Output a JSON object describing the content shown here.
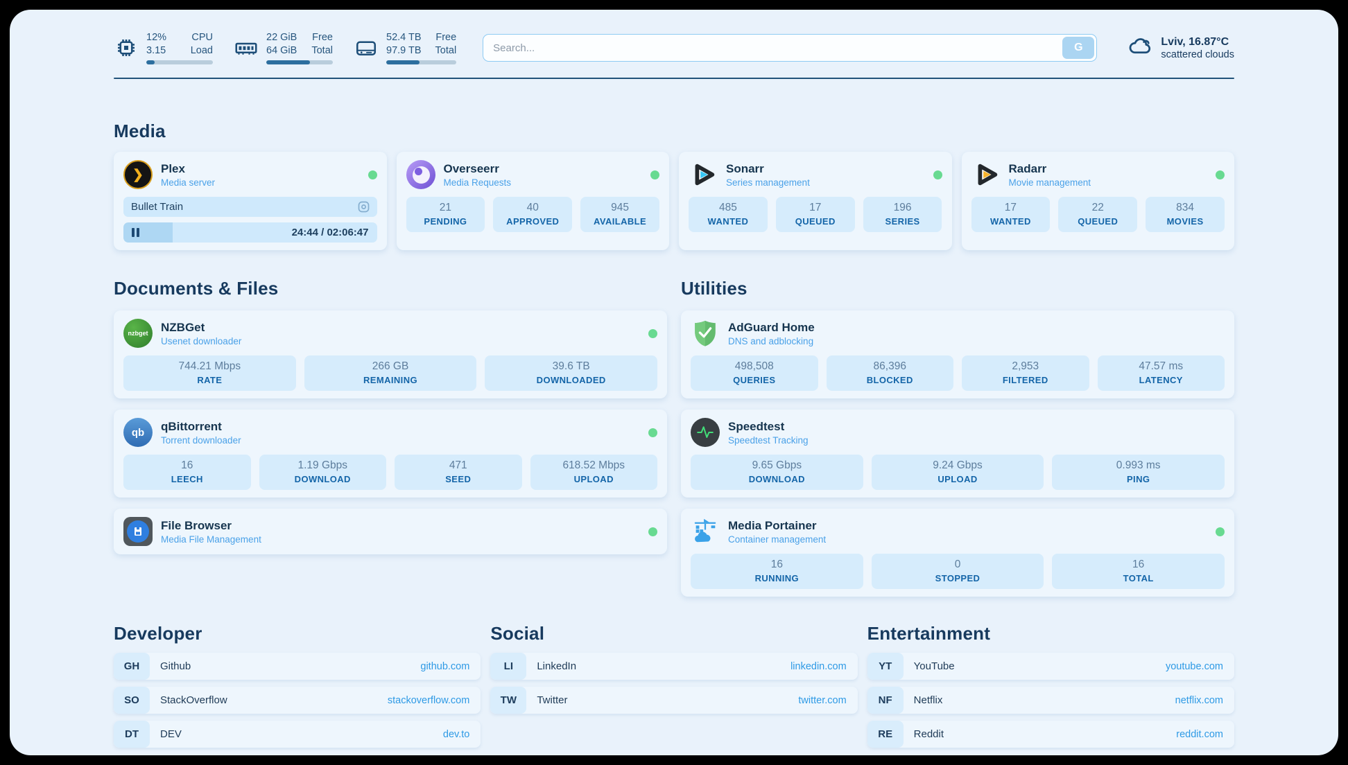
{
  "colors": {
    "status_online": "#68da91",
    "accent_blue": "#2e9ae5",
    "plex_gold": "#f2b01e",
    "sonarr_cyan": "#36c6f4",
    "radarr_yellow": "#f7b32c",
    "adguard_green": "#63bb6e",
    "speedtest_pulse": "#42de79"
  },
  "header": {
    "system_stats": [
      {
        "icon": "cpu-icon",
        "line1_value": "12%",
        "line2_value": "3.15",
        "line1_label": "CPU",
        "line2_label": "Load",
        "progress_pct": 13
      },
      {
        "icon": "ram-icon",
        "line1_value": "22 GiB",
        "line2_value": "64 GiB",
        "line1_label": "Free",
        "line2_label": "Total",
        "progress_pct": 66
      },
      {
        "icon": "disk-icon",
        "line1_value": "52.4 TB",
        "line2_value": "97.9 TB",
        "line1_label": "Free",
        "line2_label": "Total",
        "progress_pct": 47
      }
    ],
    "search": {
      "placeholder": "Search...",
      "value": "",
      "button_label": "G"
    },
    "weather": {
      "icon": "cloud-icon",
      "location": "Lviv, 16.87°C",
      "condition": "scattered clouds"
    }
  },
  "media": {
    "title": "Media",
    "apps": [
      {
        "icon": "plex-logo",
        "name": "Plex",
        "subtitle": "Media server",
        "online": true,
        "now_playing": {
          "title": "Bullet Train",
          "state": "paused",
          "time": "24:44 / 02:06:47",
          "progress_pct": 19.5
        }
      },
      {
        "icon": "overseerr-logo",
        "name": "Overseerr",
        "subtitle": "Media Requests",
        "online": true,
        "stats": [
          {
            "value": "21",
            "label": "PENDING"
          },
          {
            "value": "40",
            "label": "APPROVED"
          },
          {
            "value": "945",
            "label": "AVAILABLE"
          }
        ]
      },
      {
        "icon": "sonarr-logo",
        "name": "Sonarr",
        "subtitle": "Series management",
        "online": true,
        "stats": [
          {
            "value": "485",
            "label": "WANTED"
          },
          {
            "value": "17",
            "label": "QUEUED"
          },
          {
            "value": "196",
            "label": "SERIES"
          }
        ]
      },
      {
        "icon": "radarr-logo",
        "name": "Radarr",
        "subtitle": "Movie management",
        "online": true,
        "stats": [
          {
            "value": "17",
            "label": "WANTED"
          },
          {
            "value": "22",
            "label": "QUEUED"
          },
          {
            "value": "834",
            "label": "MOVIES"
          }
        ]
      }
    ]
  },
  "documents": {
    "title": "Documents & Files",
    "apps": [
      {
        "icon": "nzbget-logo",
        "name": "NZBGet",
        "subtitle": "Usenet downloader",
        "online": true,
        "stats": [
          {
            "value": "744.21 Mbps",
            "label": "RATE"
          },
          {
            "value": "266 GB",
            "label": "REMAINING"
          },
          {
            "value": "39.6 TB",
            "label": "DOWNLOADED"
          }
        ]
      },
      {
        "icon": "qbittorrent-logo",
        "name": "qBittorrent",
        "subtitle": "Torrent downloader",
        "online": true,
        "stats": [
          {
            "value": "16",
            "label": "LEECH"
          },
          {
            "value": "1.19 Gbps",
            "label": "DOWNLOAD"
          },
          {
            "value": "471",
            "label": "SEED"
          },
          {
            "value": "618.52 Mbps",
            "label": "UPLOAD"
          }
        ]
      },
      {
        "icon": "filebrowser-logo",
        "name": "File Browser",
        "subtitle": "Media File Management",
        "online": true
      }
    ]
  },
  "utilities": {
    "title": "Utilities",
    "apps": [
      {
        "icon": "adguard-logo",
        "name": "AdGuard Home",
        "subtitle": "DNS and adblocking",
        "online": false,
        "stats": [
          {
            "value": "498,508",
            "label": "QUERIES"
          },
          {
            "value": "86,396",
            "label": "BLOCKED"
          },
          {
            "value": "2,953",
            "label": "FILTERED"
          },
          {
            "value": "47.57 ms",
            "label": "LATENCY"
          }
        ]
      },
      {
        "icon": "speedtest-logo",
        "name": "Speedtest",
        "subtitle": "Speedtest Tracking",
        "online": false,
        "stats": [
          {
            "value": "9.65 Gbps",
            "label": "DOWNLOAD"
          },
          {
            "value": "9.24 Gbps",
            "label": "UPLOAD"
          },
          {
            "value": "0.993 ms",
            "label": "PING"
          }
        ]
      },
      {
        "icon": "portainer-logo",
        "name": "Media Portainer",
        "subtitle": "Container management",
        "online": true,
        "stats": [
          {
            "value": "16",
            "label": "RUNNING"
          },
          {
            "value": "0",
            "label": "STOPPED"
          },
          {
            "value": "16",
            "label": "TOTAL"
          }
        ]
      }
    ]
  },
  "developer": {
    "title": "Developer",
    "links": [
      {
        "abbr": "GH",
        "name": "Github",
        "url": "github.com"
      },
      {
        "abbr": "SO",
        "name": "StackOverflow",
        "url": "stackoverflow.com"
      },
      {
        "abbr": "DT",
        "name": "DEV",
        "url": "dev.to"
      }
    ]
  },
  "social": {
    "title": "Social",
    "links": [
      {
        "abbr": "LI",
        "name": "LinkedIn",
        "url": "linkedin.com"
      },
      {
        "abbr": "TW",
        "name": "Twitter",
        "url": "twitter.com"
      }
    ]
  },
  "entertainment": {
    "title": "Entertainment",
    "links": [
      {
        "abbr": "YT",
        "name": "YouTube",
        "url": "youtube.com"
      },
      {
        "abbr": "NF",
        "name": "Netflix",
        "url": "netflix.com"
      },
      {
        "abbr": "RE",
        "name": "Reddit",
        "url": "reddit.com"
      }
    ]
  }
}
